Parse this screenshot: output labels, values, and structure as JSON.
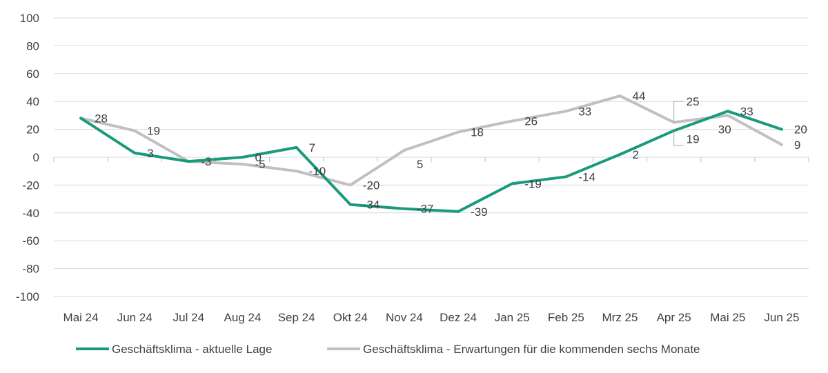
{
  "chart_data": {
    "type": "line",
    "categories": [
      "Mai 24",
      "Jun 24",
      "Jul 24",
      "Aug 24",
      "Sep 24",
      "Okt 24",
      "Nov 24",
      "Dez 24",
      "Jan 25",
      "Feb 25",
      "Mrz 25",
      "Apr 25",
      "Mai 25",
      "Jun 25"
    ],
    "series": [
      {
        "name": "Geschäftsklima - aktuelle Lage",
        "color": "#1a9a7c",
        "values": [
          28,
          3,
          -3,
          0,
          7,
          -34,
          -37,
          -39,
          -19,
          -14,
          2,
          19,
          33,
          20
        ],
        "labels": [
          "",
          "3",
          "",
          "0",
          "7",
          "-34",
          "-37",
          "-39",
          "-19",
          "-14",
          "2",
          "19",
          "33",
          "20"
        ]
      },
      {
        "name": "Geschäftsklima - Erwartungen für die kommenden sechs Monate",
        "color": "#c0c0c0",
        "values": [
          28,
          19,
          -3,
          -5,
          -10,
          -20,
          5,
          18,
          26,
          33,
          44,
          25,
          30,
          9
        ],
        "labels": [
          "28",
          "19",
          "-3",
          "-5",
          "-10",
          "-20",
          "5",
          "18",
          "26",
          "33",
          "44",
          "25",
          "30",
          "9"
        ]
      }
    ],
    "ylim": [
      -100,
      100
    ],
    "yticks": [
      "100",
      "80",
      "60",
      "40",
      "20",
      "0",
      "-20",
      "-40",
      "-60",
      "-80",
      "-100"
    ],
    "grid": true,
    "legend_position": "bottom"
  }
}
